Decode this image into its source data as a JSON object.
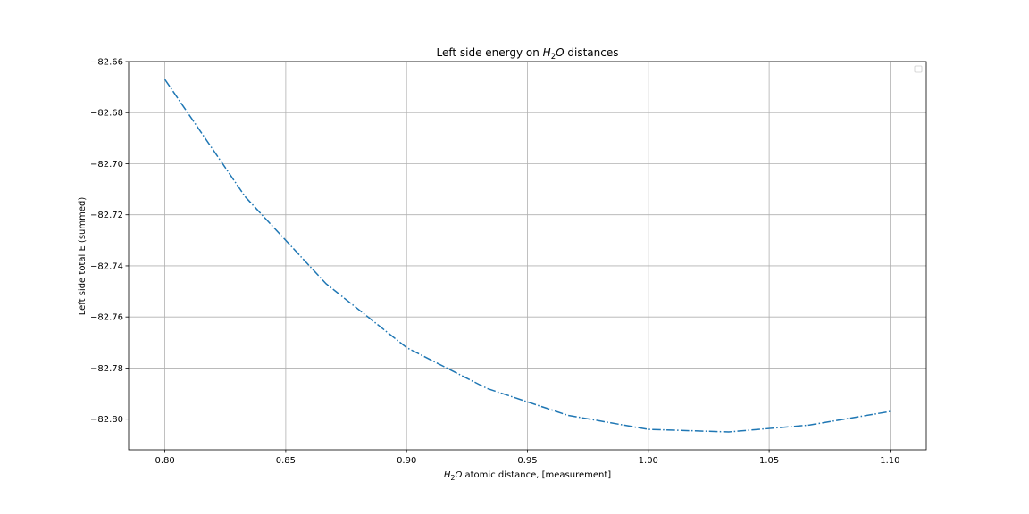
{
  "chart_data": {
    "type": "line",
    "title": {
      "prefix": "Left side energy on ",
      "molecule": {
        "base": "H",
        "sub": "2",
        "tail": "O"
      },
      "suffix": " distances"
    },
    "xlabel": {
      "molecule": {
        "base": "H",
        "sub": "2",
        "tail": "O"
      },
      "suffix": " atomic distance, [measurement]"
    },
    "ylabel": "Left side total E (summed)",
    "xlim": [
      0.785,
      1.115
    ],
    "ylim": [
      -82.812,
      -82.66
    ],
    "x_ticks": [
      0.8,
      0.85,
      0.9,
      0.95,
      1.0,
      1.05,
      1.1
    ],
    "x_tick_labels": [
      "0.80",
      "0.85",
      "0.90",
      "0.95",
      "1.00",
      "1.05",
      "1.10"
    ],
    "y_ticks": [
      -82.66,
      -82.68,
      -82.7,
      -82.72,
      -82.74,
      -82.76,
      -82.78,
      -82.8
    ],
    "y_tick_labels": [
      "−82.66",
      "−82.68",
      "−82.70",
      "−82.72",
      "−82.74",
      "−82.76",
      "−82.78",
      "−82.80"
    ],
    "grid": true,
    "legend": "top-right (empty)",
    "series": [
      {
        "color": "#1f77b4",
        "linestyle": "dash-dot",
        "x": [
          0.8,
          0.8333,
          0.8667,
          0.9,
          0.9333,
          0.9667,
          1.0,
          1.0333,
          1.0667,
          1.1
        ],
        "y": [
          -82.667,
          -82.713,
          -82.747,
          -82.772,
          -82.788,
          -82.7985,
          -82.804,
          -82.805,
          -82.8023,
          -82.797
        ]
      }
    ]
  }
}
